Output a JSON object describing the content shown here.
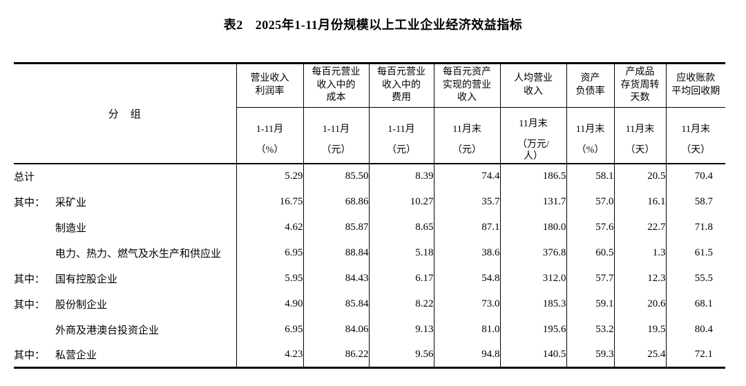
{
  "title": {
    "label": "表2",
    "text": "2025年1-11月份规模以上工业企业经济效益指标"
  },
  "table": {
    "group_header": "分　组",
    "columns": [
      {
        "name_lines": [
          "营业收入",
          "利润率"
        ],
        "period": "1-11月",
        "unit": "（%）"
      },
      {
        "name_lines": [
          "每百元营业",
          "收入中的",
          "成本"
        ],
        "period": "1-11月",
        "unit": "（元）"
      },
      {
        "name_lines": [
          "每百元营业",
          "收入中的",
          "费用"
        ],
        "period": "1-11月",
        "unit": "（元）"
      },
      {
        "name_lines": [
          "每百元资产",
          "实现的营业",
          "收入"
        ],
        "period": "11月末",
        "unit": "（元）"
      },
      {
        "name_lines": [
          "人均营业",
          "收入"
        ],
        "period": "11月末",
        "unit": "（万元/\n人）"
      },
      {
        "name_lines": [
          "资产",
          "负债率"
        ],
        "period": "11月末",
        "unit": "（%）"
      },
      {
        "name_lines": [
          "产成品",
          "存货周转",
          "天数"
        ],
        "period": "11月末",
        "unit": "（天）"
      },
      {
        "name_lines": [
          "应收账款",
          "平均回收期"
        ],
        "period": "11月末",
        "unit": "（天）"
      }
    ],
    "rows": [
      {
        "prefix": "",
        "indent": false,
        "label": "总计",
        "values": [
          "5.29",
          "85.50",
          "8.39",
          "74.4",
          "186.5",
          "58.1",
          "20.5",
          "70.4"
        ]
      },
      {
        "prefix": "其中：",
        "indent": true,
        "label": "采矿业",
        "values": [
          "16.75",
          "68.86",
          "10.27",
          "35.7",
          "131.7",
          "57.0",
          "16.1",
          "58.7"
        ]
      },
      {
        "prefix": "",
        "indent": true,
        "label": "制造业",
        "values": [
          "4.62",
          "85.87",
          "8.65",
          "87.1",
          "180.0",
          "57.6",
          "22.7",
          "71.8"
        ]
      },
      {
        "prefix": "",
        "indent": true,
        "label": "电力、热力、燃气及水生产和供应业",
        "values": [
          "6.95",
          "88.84",
          "5.18",
          "38.6",
          "376.8",
          "60.5",
          "1.3",
          "61.5"
        ]
      },
      {
        "prefix": "其中：",
        "indent": true,
        "label": "国有控股企业",
        "values": [
          "5.95",
          "84.43",
          "6.17",
          "54.8",
          "312.0",
          "57.7",
          "12.3",
          "55.5"
        ]
      },
      {
        "prefix": "其中：",
        "indent": true,
        "label": "股份制企业",
        "values": [
          "4.90",
          "85.84",
          "8.22",
          "73.0",
          "185.3",
          "59.1",
          "20.6",
          "68.1"
        ]
      },
      {
        "prefix": "",
        "indent": true,
        "label": "外商及港澳台投资企业",
        "values": [
          "6.95",
          "84.06",
          "9.13",
          "81.0",
          "195.6",
          "53.2",
          "19.5",
          "80.4"
        ]
      },
      {
        "prefix": "其中：",
        "indent": true,
        "label": "私营企业",
        "values": [
          "4.23",
          "86.22",
          "9.56",
          "94.8",
          "140.5",
          "59.3",
          "25.4",
          "72.1"
        ]
      }
    ]
  }
}
